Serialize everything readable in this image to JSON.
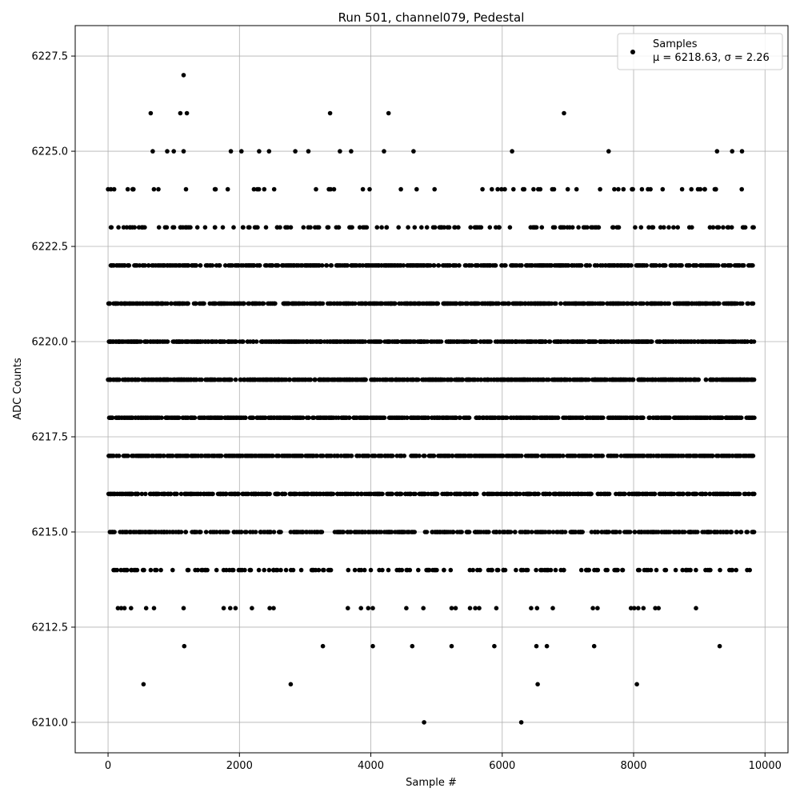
{
  "chart_data": {
    "type": "scatter",
    "title": "Run 501, channel079, Pedestal",
    "xlabel": "Sample #",
    "ylabel": "ADC Counts",
    "xlim": [
      -500,
      10350
    ],
    "ylim": [
      6209.2,
      6228.3
    ],
    "xticks": [
      0,
      2000,
      4000,
      6000,
      8000,
      10000
    ],
    "xtick_labels": [
      "0",
      "2000",
      "4000",
      "6000",
      "8000",
      "10000"
    ],
    "yticks": [
      6210.0,
      6212.5,
      6215.0,
      6217.5,
      6220.0,
      6222.5,
      6225.0,
      6227.5
    ],
    "ytick_labels": [
      "6210.0",
      "6212.5",
      "6215.0",
      "6217.5",
      "6220.0",
      "6222.5",
      "6225.0",
      "6227.5"
    ],
    "grid": true,
    "legend": {
      "placement": "top-right",
      "label": "Samples",
      "stats_label": "μ = 6218.63, σ = 2.26"
    },
    "sample_count": 9840,
    "mean": 6218.63,
    "sigma": 2.26,
    "series": [
      {
        "name": "Samples",
        "color": "#000000",
        "points": [
          [
            0,
            6224
          ],
          [
            300,
            6224
          ],
          [
            650,
            6226
          ],
          [
            1100,
            6226
          ],
          [
            1150,
            6227
          ],
          [
            1200,
            6226
          ],
          [
            3380,
            6226
          ],
          [
            4270,
            6226
          ],
          [
            6940,
            6226
          ],
          [
            680,
            6225
          ],
          [
            900,
            6225
          ],
          [
            1000,
            6225
          ],
          [
            1150,
            6225
          ],
          [
            1870,
            6225
          ],
          [
            2030,
            6225
          ],
          [
            2300,
            6225
          ],
          [
            2450,
            6225
          ],
          [
            2850,
            6225
          ],
          [
            3050,
            6225
          ],
          [
            3530,
            6225
          ],
          [
            3700,
            6225
          ],
          [
            4200,
            6225
          ],
          [
            4650,
            6225
          ],
          [
            6150,
            6225
          ],
          [
            7620,
            6225
          ],
          [
            9270,
            6225
          ],
          [
            9500,
            6225
          ],
          [
            9650,
            6225
          ],
          [
            540,
            6211
          ],
          [
            2780,
            6211
          ],
          [
            6540,
            6211
          ],
          [
            8050,
            6211
          ],
          [
            4810,
            6210
          ],
          [
            6290,
            6210
          ],
          [
            1160,
            6212
          ],
          [
            3270,
            6212
          ],
          [
            4030,
            6212
          ],
          [
            4630,
            6212
          ],
          [
            5230,
            6212
          ],
          [
            5880,
            6212
          ],
          [
            6520,
            6212
          ],
          [
            6680,
            6212
          ],
          [
            7400,
            6212
          ],
          [
            9310,
            6212
          ],
          [
            150,
            6213
          ],
          [
            200,
            6213
          ],
          [
            250,
            6213
          ],
          [
            350,
            6213
          ],
          [
            580,
            6213
          ],
          [
            700,
            6213
          ],
          [
            1150,
            6213
          ],
          [
            1760,
            6213
          ],
          [
            1860,
            6213
          ],
          [
            1940,
            6213
          ],
          [
            2190,
            6213
          ],
          [
            2460,
            6213
          ],
          [
            2520,
            6213
          ],
          [
            3650,
            6213
          ],
          [
            3850,
            6213
          ],
          [
            3960,
            6213
          ],
          [
            4030,
            6213
          ],
          [
            4540,
            6213
          ],
          [
            4800,
            6213
          ],
          [
            5230,
            6213
          ],
          [
            5290,
            6213
          ],
          [
            5510,
            6213
          ],
          [
            5590,
            6213
          ],
          [
            5650,
            6213
          ],
          [
            5910,
            6213
          ],
          [
            6440,
            6213
          ],
          [
            6530,
            6213
          ],
          [
            6770,
            6213
          ],
          [
            7380,
            6213
          ],
          [
            7450,
            6213
          ],
          [
            7960,
            6213
          ],
          [
            8010,
            6213
          ],
          [
            8070,
            6213
          ],
          [
            8150,
            6213
          ],
          [
            8330,
            6213
          ],
          [
            8380,
            6213
          ],
          [
            8950,
            6213
          ]
        ]
      }
    ]
  }
}
